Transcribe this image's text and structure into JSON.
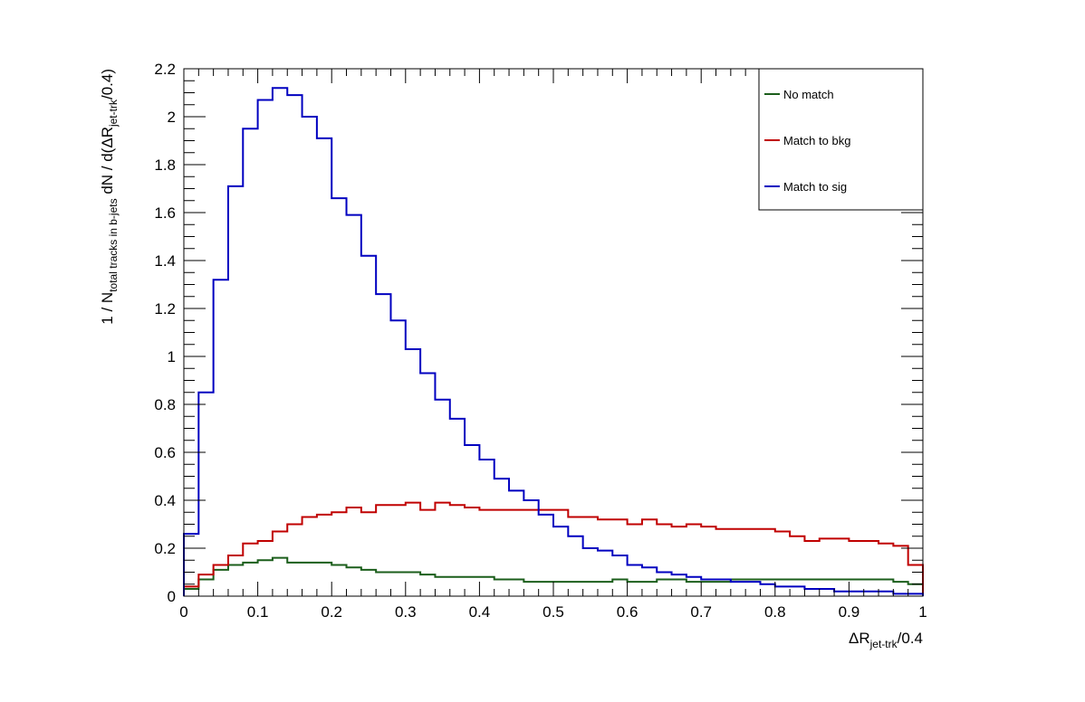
{
  "chart_data": {
    "type": "line",
    "style": "step-histogram",
    "xlabel": {
      "main": "ΔR",
      "sub": "jet-trk",
      "suffix": "/0.4"
    },
    "ylabel": {
      "prefix": "1 / N",
      "sub": "total tracks in b-jets",
      "mid": " dN / d(ΔR",
      "sub2": "jet-trk",
      "suffix": "/0.4)"
    },
    "xlim": [
      0,
      1
    ],
    "ylim": [
      0,
      2.2
    ],
    "xticks": [
      "0",
      "0.1",
      "0.2",
      "0.3",
      "0.4",
      "0.5",
      "0.6",
      "0.7",
      "0.8",
      "0.9",
      "1"
    ],
    "yticks": [
      "0",
      "0.2",
      "0.4",
      "0.6",
      "0.8",
      "1",
      "1.2",
      "1.4",
      "1.6",
      "1.8",
      "2",
      "2.2"
    ],
    "grid": false,
    "legend_position": "top-right",
    "bin_edges_start": 0,
    "bin_width": 0.02,
    "series": [
      {
        "name": "No match",
        "color": "#1b5e1b",
        "values": [
          0.03,
          0.07,
          0.11,
          0.13,
          0.14,
          0.15,
          0.16,
          0.14,
          0.14,
          0.14,
          0.13,
          0.12,
          0.11,
          0.1,
          0.1,
          0.1,
          0.09,
          0.08,
          0.08,
          0.08,
          0.08,
          0.07,
          0.07,
          0.06,
          0.06,
          0.06,
          0.06,
          0.06,
          0.06,
          0.07,
          0.06,
          0.06,
          0.07,
          0.07,
          0.06,
          0.06,
          0.06,
          0.07,
          0.07,
          0.07,
          0.07,
          0.07,
          0.07,
          0.07,
          0.07,
          0.07,
          0.07,
          0.07,
          0.06,
          0.05
        ]
      },
      {
        "name": "Match to bkg",
        "color": "#c00000",
        "values": [
          0.04,
          0.09,
          0.13,
          0.17,
          0.22,
          0.23,
          0.27,
          0.3,
          0.33,
          0.34,
          0.35,
          0.37,
          0.35,
          0.38,
          0.38,
          0.39,
          0.36,
          0.39,
          0.38,
          0.37,
          0.36,
          0.36,
          0.36,
          0.36,
          0.36,
          0.36,
          0.33,
          0.33,
          0.32,
          0.32,
          0.3,
          0.32,
          0.3,
          0.29,
          0.3,
          0.29,
          0.28,
          0.28,
          0.28,
          0.28,
          0.27,
          0.25,
          0.23,
          0.24,
          0.24,
          0.23,
          0.23,
          0.22,
          0.21,
          0.13
        ]
      },
      {
        "name": "Match to sig",
        "color": "#0000c0",
        "values": [
          0.26,
          0.85,
          1.32,
          1.71,
          1.95,
          2.07,
          2.12,
          2.09,
          2.0,
          1.91,
          1.66,
          1.59,
          1.42,
          1.26,
          1.15,
          1.03,
          0.93,
          0.82,
          0.74,
          0.63,
          0.57,
          0.49,
          0.44,
          0.4,
          0.34,
          0.29,
          0.25,
          0.2,
          0.19,
          0.17,
          0.13,
          0.12,
          0.1,
          0.09,
          0.08,
          0.07,
          0.07,
          0.06,
          0.06,
          0.05,
          0.04,
          0.04,
          0.03,
          0.03,
          0.02,
          0.02,
          0.02,
          0.02,
          0.01,
          0.01
        ]
      }
    ]
  }
}
